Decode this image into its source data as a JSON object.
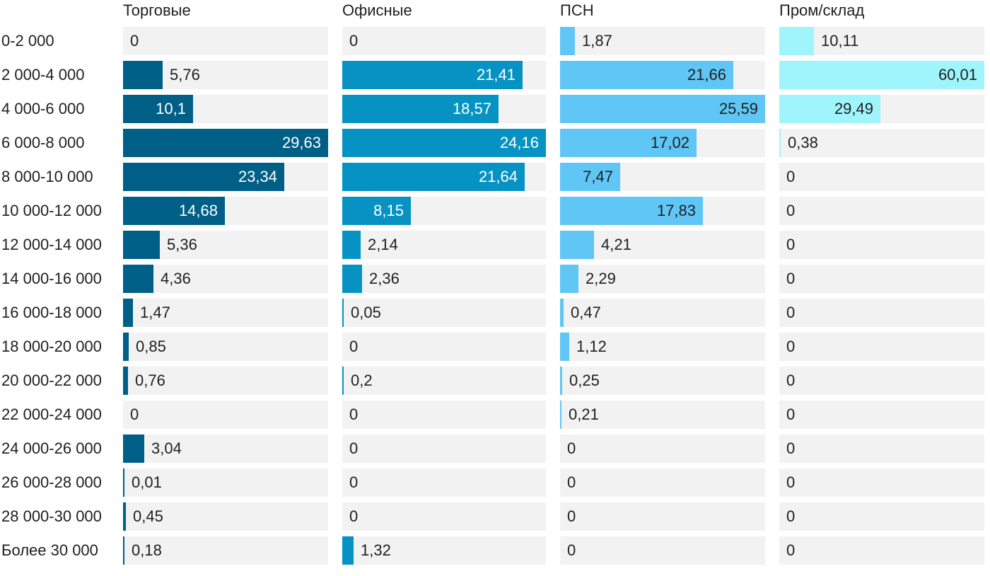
{
  "chart_data": {
    "type": "bar",
    "orientation": "horizontal",
    "layout": "small-multiples",
    "categories": [
      "0-2 000",
      "2 000-4 000",
      "4 000-6 000",
      "6 000-8 000",
      "8 000-10 000",
      "10 000-12 000",
      "12 000-14 000",
      "14 000-16 000",
      "16 000-18 000",
      "18 000-20 000",
      "20 000-22 000",
      "22 000-24 000",
      "24 000-26 000",
      "26 000-28 000",
      "28 000-30 000",
      "Более 30 000"
    ],
    "series": [
      {
        "name": "Торговые",
        "color": "#005f86",
        "label_color_inside": "#ffffff",
        "values": [
          0,
          5.76,
          10.1,
          29.63,
          23.34,
          14.68,
          5.36,
          4.36,
          1.47,
          0.85,
          0.76,
          0,
          3.04,
          0.01,
          0.45,
          0.18
        ],
        "labels": [
          "0",
          "5,76",
          "10,1",
          "29,63",
          "23,34",
          "14,68",
          "5,36",
          "4,36",
          "1,47",
          "0,85",
          "0,76",
          "0",
          "3,04",
          "0,01",
          "0,45",
          "0,18"
        ]
      },
      {
        "name": "Офисные",
        "color": "#0693c3",
        "label_color_inside": "#ffffff",
        "values": [
          0,
          21.41,
          18.57,
          24.16,
          21.64,
          8.15,
          2.14,
          2.36,
          0.05,
          0,
          0.2,
          0,
          0,
          0,
          0,
          1.32
        ],
        "labels": [
          "0",
          "21,41",
          "18,57",
          "24,16",
          "21,64",
          "8,15",
          "2,14",
          "2,36",
          "0,05",
          "0",
          "0,2",
          "0",
          "0",
          "0",
          "0",
          "1,32"
        ]
      },
      {
        "name": "ПСН",
        "color": "#5fc6f5",
        "label_color_inside": "#1f1f1f",
        "values": [
          1.87,
          21.66,
          25.59,
          17.02,
          7.47,
          17.83,
          4.21,
          2.29,
          0.47,
          1.12,
          0.25,
          0.21,
          0,
          0,
          0,
          0
        ],
        "labels": [
          "1,87",
          "21,66",
          "25,59",
          "17,02",
          "7,47",
          "17,83",
          "4,21",
          "2,29",
          "0,47",
          "1,12",
          "0,25",
          "0,21",
          "0",
          "0",
          "0",
          "0"
        ]
      },
      {
        "name": "Пром/склад",
        "color": "#9ff5fb",
        "label_color_inside": "#1f1f1f",
        "values": [
          10.11,
          60.01,
          29.49,
          0.38,
          0,
          0,
          0,
          0,
          0,
          0,
          0,
          0,
          0,
          0,
          0,
          0
        ],
        "labels": [
          "10,11",
          "60,01",
          "29,49",
          "0,38",
          "0",
          "0",
          "0",
          "0",
          "0",
          "0",
          "0",
          "0",
          "0",
          "0",
          "0",
          "0"
        ]
      }
    ],
    "grid": false,
    "legend": "none"
  }
}
